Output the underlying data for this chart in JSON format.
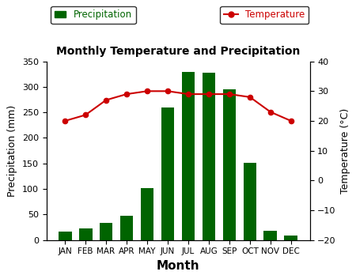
{
  "months": [
    "JAN",
    "FEB",
    "MAR",
    "APR",
    "MAY",
    "JUN",
    "JUL",
    "AUG",
    "SEP",
    "OCT",
    "NOV",
    "DEC"
  ],
  "precipitation": [
    17,
    23,
    34,
    48,
    102,
    260,
    330,
    328,
    296,
    151,
    18,
    8
  ],
  "temperature": [
    20,
    22,
    27,
    29,
    30,
    30,
    29,
    29,
    29,
    28,
    23,
    20
  ],
  "bar_color": "#006400",
  "line_color": "#CC0000",
  "title": "Monthly Temperature and Precipitation",
  "xlabel": "Month",
  "ylabel_left": "Precipitation (mm)",
  "ylabel_right": "Temperature (°C)",
  "precip_ylim": [
    0,
    350
  ],
  "temp_ylim": [
    -20,
    40
  ],
  "precip_yticks": [
    0,
    50,
    100,
    150,
    200,
    250,
    300,
    350
  ],
  "temp_yticks": [
    -20,
    -10,
    0,
    10,
    20,
    30,
    40
  ],
  "legend_precip_label": "Precipitation",
  "legend_temp_label": "Temperature",
  "legend_precip_color": "#006400",
  "legend_temp_color": "#CC0000"
}
